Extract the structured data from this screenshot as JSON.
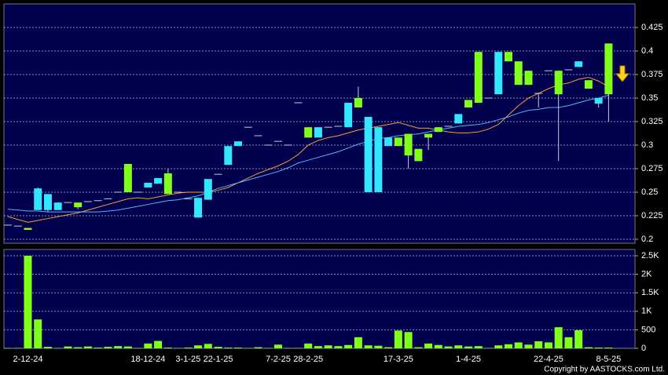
{
  "chart_data": [
    {
      "type": "candlestick",
      "categories": [
        null,
        null,
        "2-12-24",
        null,
        null,
        null,
        null,
        null,
        null,
        null,
        null,
        null,
        null,
        null,
        "18-12-24",
        null,
        null,
        null,
        "3-1-25",
        null,
        null,
        "22-1-25",
        null,
        null,
        null,
        null,
        null,
        "7-2-25",
        null,
        null,
        "28-2-25",
        null,
        null,
        null,
        null,
        null,
        null,
        null,
        null,
        "17-3-25",
        null,
        null,
        null,
        null,
        null,
        null,
        "1-4-25",
        null,
        null,
        null,
        null,
        null,
        null,
        null,
        "22-4-25",
        null,
        null,
        null,
        null,
        null,
        "8-5-25"
      ],
      "open": [
        0.215,
        0.214,
        0.212,
        0.231,
        0.231,
        0.231,
        0.239,
        0.239,
        0.24,
        0.241,
        0.243,
        0.25,
        0.28,
        0.25,
        0.255,
        0.259,
        0.27,
        0.25,
        0.243,
        0.223,
        0.242,
        0.269,
        0.279,
        0.299,
        0.319,
        0.31,
        0.3,
        0.304,
        0.3,
        0.345,
        0.319,
        0.308,
        0.319,
        0.32,
        0.319,
        0.35,
        0.25,
        0.25,
        0.299,
        0.308,
        0.312,
        0.296,
        0.312,
        0.319,
        0.32,
        0.323,
        0.348,
        0.399,
        0.35,
        0.354,
        0.399,
        0.389,
        0.379,
        0.355,
        0.379,
        0.379,
        0.38,
        0.383,
        0.369,
        0.344,
        0.408
      ],
      "high": [
        0.215,
        0.214,
        0.212,
        0.255,
        0.248,
        0.239,
        0.239,
        0.239,
        0.24,
        0.241,
        0.243,
        0.25,
        0.28,
        0.25,
        0.26,
        0.265,
        0.275,
        0.25,
        0.243,
        0.244,
        0.264,
        0.269,
        0.299,
        0.304,
        0.319,
        0.31,
        0.3,
        0.304,
        0.3,
        0.345,
        0.319,
        0.319,
        0.319,
        0.32,
        0.345,
        0.362,
        0.33,
        0.319,
        0.308,
        0.308,
        0.312,
        0.296,
        0.312,
        0.319,
        0.32,
        0.333,
        0.348,
        0.399,
        0.35,
        0.399,
        0.399,
        0.389,
        0.379,
        0.355,
        0.379,
        0.379,
        0.38,
        0.389,
        0.369,
        0.35,
        0.408
      ],
      "low": [
        0.215,
        0.214,
        0.21,
        0.231,
        0.229,
        0.231,
        0.239,
        0.232,
        0.24,
        0.241,
        0.243,
        0.25,
        0.25,
        0.25,
        0.255,
        0.259,
        0.248,
        0.25,
        0.243,
        0.223,
        0.242,
        0.269,
        0.279,
        0.299,
        0.319,
        0.31,
        0.3,
        0.304,
        0.3,
        0.345,
        0.308,
        0.308,
        0.319,
        0.32,
        0.319,
        0.34,
        0.25,
        0.25,
        0.299,
        0.299,
        0.275,
        0.283,
        0.295,
        0.314,
        0.32,
        0.323,
        0.34,
        0.345,
        0.35,
        0.354,
        0.389,
        0.364,
        0.364,
        0.34,
        0.379,
        0.283,
        0.38,
        0.383,
        0.36,
        0.34,
        0.325
      ],
      "close": [
        0.215,
        0.214,
        0.21,
        0.254,
        0.248,
        0.239,
        0.239,
        0.234,
        0.24,
        0.241,
        0.243,
        0.25,
        0.25,
        0.25,
        0.26,
        0.265,
        0.248,
        0.25,
        0.243,
        0.244,
        0.264,
        0.269,
        0.299,
        0.304,
        0.319,
        0.31,
        0.3,
        0.304,
        0.3,
        0.345,
        0.308,
        0.319,
        0.319,
        0.32,
        0.345,
        0.34,
        0.33,
        0.319,
        0.308,
        0.299,
        0.289,
        0.283,
        0.308,
        0.314,
        0.32,
        0.333,
        0.34,
        0.345,
        0.35,
        0.399,
        0.389,
        0.364,
        0.364,
        0.355,
        0.379,
        0.354,
        0.38,
        0.389,
        0.36,
        0.35,
        0.354
      ],
      "up_color": "#33e6ff",
      "down_color": "#7fff1a",
      "lines": [
        {
          "color": "#ff9a2e",
          "values": [
            0.224,
            0.221,
            0.218,
            0.22,
            0.222,
            0.224,
            0.226,
            0.228,
            0.231,
            0.234,
            0.237,
            0.24,
            0.243,
            0.244,
            0.243,
            0.245,
            0.247,
            0.249,
            0.25,
            0.25,
            0.25,
            0.252,
            0.255,
            0.26,
            0.265,
            0.27,
            0.274,
            0.278,
            0.283,
            0.29,
            0.3,
            0.305,
            0.308,
            0.31,
            0.313,
            0.316,
            0.318,
            0.32,
            0.322,
            0.324,
            0.321,
            0.318,
            0.318,
            0.316,
            0.314,
            0.313,
            0.313,
            0.314,
            0.317,
            0.322,
            0.332,
            0.342,
            0.35,
            0.355,
            0.36,
            0.364,
            0.366,
            0.37,
            0.372,
            0.368,
            0.362
          ]
        },
        {
          "color": "#4fb8ff",
          "values": [
            0.232,
            0.231,
            0.23,
            0.23,
            0.229,
            0.229,
            0.229,
            0.229,
            0.229,
            0.229,
            0.23,
            0.231,
            0.233,
            0.235,
            0.237,
            0.239,
            0.241,
            0.242,
            0.244,
            0.246,
            0.25,
            0.254,
            0.257,
            0.26,
            0.263,
            0.266,
            0.269,
            0.272,
            0.276,
            0.281,
            0.284,
            0.287,
            0.29,
            0.293,
            0.297,
            0.301,
            0.304,
            0.307,
            0.308,
            0.31,
            0.311,
            0.312,
            0.314,
            0.316,
            0.318,
            0.32,
            0.321,
            0.322,
            0.324,
            0.327,
            0.33,
            0.334,
            0.337,
            0.338,
            0.34,
            0.34,
            0.342,
            0.345,
            0.348,
            0.35,
            0.353
          ]
        }
      ],
      "ylim": [
        0.1958,
        0.45
      ],
      "yticks": [
        0.2,
        0.225,
        0.25,
        0.275,
        0.3,
        0.325,
        0.35,
        0.375,
        0.4,
        0.425
      ],
      "grid": true
    },
    {
      "type": "bar",
      "color": "#7fff1a",
      "values": [
        10,
        10,
        2500,
        780,
        40,
        10,
        50,
        30,
        50,
        20,
        40,
        60,
        50,
        10,
        130,
        200,
        20,
        10,
        20,
        80,
        120,
        40,
        20,
        20,
        10,
        30,
        10,
        100,
        10,
        10,
        130,
        60,
        80,
        60,
        90,
        300,
        80,
        70,
        30,
        480,
        440,
        30,
        130,
        90,
        50,
        80,
        50,
        60,
        10,
        80,
        110,
        160,
        100,
        190,
        160,
        570,
        300,
        490,
        30,
        20,
        20
      ],
      "ylim": [
        0,
        2670
      ],
      "yticks": [
        0,
        500,
        {
          "value": 1000,
          "label": "1K"
        },
        {
          "value": 1500,
          "label": "1.5K"
        },
        {
          "value": 2000,
          "label": "2K"
        },
        {
          "value": 2500,
          "label": "2.5K"
        }
      ],
      "grid": true
    }
  ],
  "copyright": "Copyright by AASTOCKS.com Ltd."
}
